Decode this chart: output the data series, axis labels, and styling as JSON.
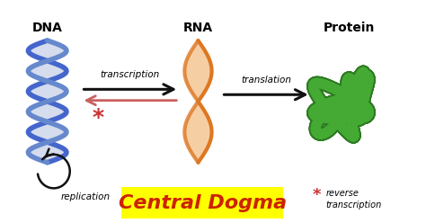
{
  "title": "Central Dogma",
  "background_color": "#ffffff",
  "dna_label": "DNA",
  "rna_label": "RNA",
  "protein_label": "Protein",
  "transcription_label": "transcription",
  "translation_label": "translation",
  "replication_label": "replication",
  "central_dogma_bg": "#ffff00",
  "central_dogma_text_color": "#cc2200",
  "arrow_forward_color": "#111111",
  "arrow_reverse_color": "#c96060",
  "star_color": "#cc3333",
  "dna_color1": "#4466cc",
  "dna_color2": "#6688cc",
  "dna_ribbon_color": "#aabbdd",
  "rna_outer_color": "#dd7722",
  "rna_inner_color": "#f5c99a",
  "protein_color": "#44aa33",
  "protein_dark_color": "#2d7a22",
  "replication_arrow_color": "#111111",
  "label_fontsize": 10,
  "title_fontsize": 16
}
